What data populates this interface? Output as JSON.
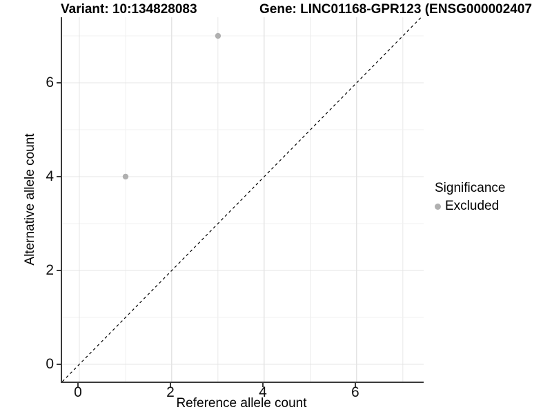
{
  "titles": {
    "variant": "Variant: 10:134828083",
    "gene": "Gene: LINC01168-GPR123 (ENSG000002407"
  },
  "axes": {
    "x": {
      "label": "Reference allele count"
    },
    "y": {
      "label": "Alternative allele count"
    }
  },
  "legend": {
    "title": "Significance",
    "items": [
      {
        "label": "Excluded",
        "color": "#b0b0b0"
      }
    ]
  },
  "chart_data": {
    "type": "scatter",
    "title": "Variant: 10:134828083   Gene: LINC01168-GPR123 (ENSG000002407",
    "xlabel": "Reference allele count",
    "ylabel": "Alternative allele count",
    "xlim": [
      -0.373,
      7.45
    ],
    "ylim": [
      -0.368,
      7.397
    ],
    "x_major_ticks": [
      0,
      2,
      4,
      6
    ],
    "y_major_ticks": [
      0,
      2,
      4,
      6
    ],
    "x_minor_gridlines": [
      1,
      3,
      5,
      7
    ],
    "y_minor_gridlines": [
      1,
      3,
      5,
      7
    ],
    "grid": true,
    "legend_position": "right",
    "series": [
      {
        "name": "Excluded",
        "color": "#b0b0b0",
        "points": [
          {
            "x": 1,
            "y": 4
          },
          {
            "x": 3,
            "y": 7
          }
        ]
      }
    ],
    "reference_line": {
      "type": "identity",
      "dashed": true,
      "color": "#000000"
    },
    "style": {
      "grid_major": "#e4e4e4",
      "grid_minor": "#f0f0f0",
      "axis_line": "#3a3a3a",
      "point_radius": 4.2
    }
  }
}
